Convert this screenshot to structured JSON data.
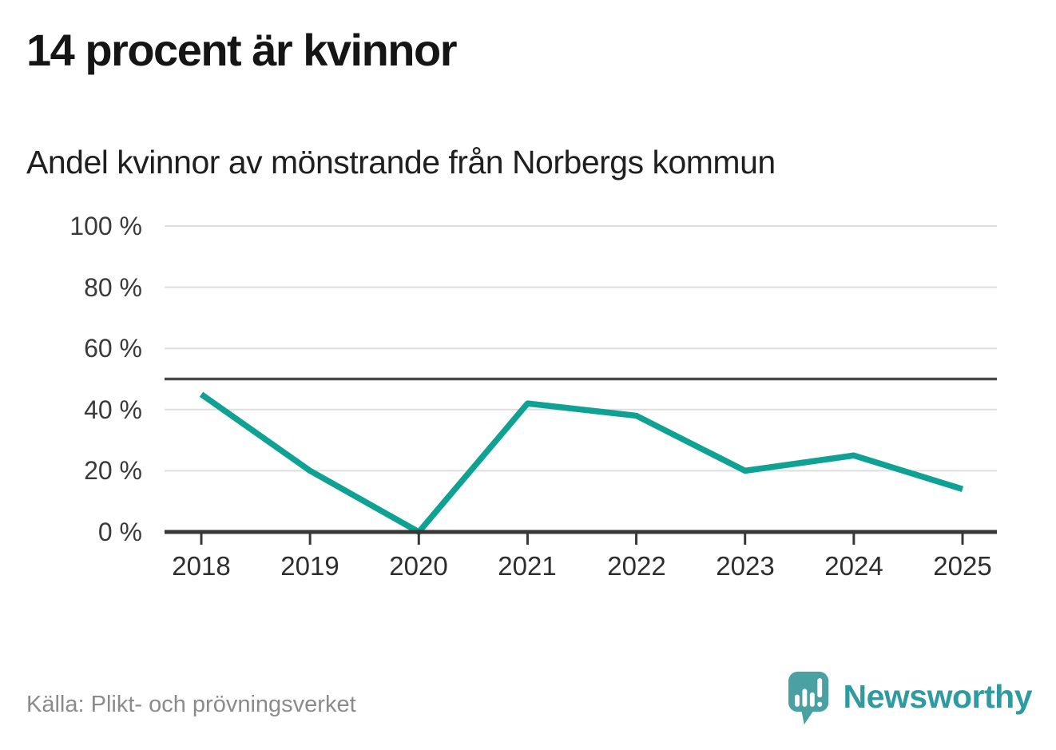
{
  "header": {
    "title": "14 procent är kvinnor",
    "subtitle": "Andel kvinnor av mönstrande från Norbergs kommun"
  },
  "chart_data": {
    "type": "line",
    "title": "14 procent är kvinnor",
    "subtitle": "Andel kvinnor av mönstrande från Norbergs kommun",
    "categories": [
      "2018",
      "2019",
      "2020",
      "2021",
      "2022",
      "2023",
      "2024",
      "2025"
    ],
    "series": [
      {
        "name": "Andel kvinnor av mönstrande",
        "values": [
          45,
          20,
          0,
          42,
          38,
          20,
          25,
          14
        ]
      }
    ],
    "xlabel": "",
    "ylabel": "",
    "ylim": [
      0,
      100
    ],
    "yticks": [
      0,
      20,
      40,
      60,
      80,
      100
    ],
    "ytick_labels": [
      "0 %",
      "20 %",
      "40 %",
      "60 %",
      "80 %",
      "100 %"
    ],
    "reference_line": 50,
    "grid": "horizontal",
    "legend": "none",
    "unit": "%"
  },
  "footer": {
    "source": "Källa: Plikt- och prövningsverket",
    "brand_name": "Newsworthy"
  },
  "colors": {
    "line": "#0FA294",
    "gridline": "#DEDEDE",
    "reference_line": "#4A4A4A",
    "axis": "#383838",
    "title": "#151515",
    "source_text": "#8B8B8B",
    "brand_teal": "#4BA1A1",
    "brand_text": "#2D9BA0",
    "background": "#FFFFFF"
  }
}
